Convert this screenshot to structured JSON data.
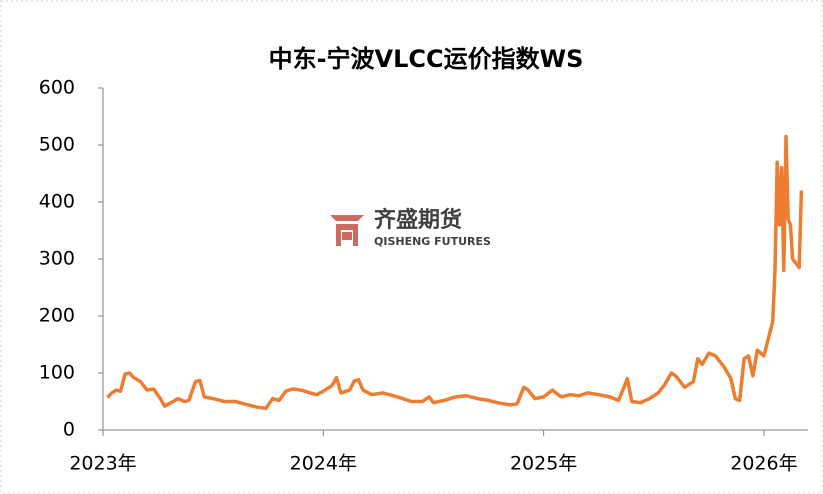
{
  "chart_data": {
    "type": "line",
    "title": "中东-宁波VLCC运价指数WS",
    "watermark": [
      "齐盛期货",
      "QISHENG FUTURES"
    ],
    "xlim": [
      2023,
      2026.2
    ],
    "xticks": [
      {
        "value": 2023,
        "label": "2023年"
      },
      {
        "value": 2024,
        "label": "2024年"
      },
      {
        "value": 2025,
        "label": "2025年"
      },
      {
        "value": 2026,
        "label": "2026年"
      }
    ],
    "ylim": [
      0,
      600
    ],
    "yticks": [
      0,
      100,
      200,
      300,
      400,
      500,
      600
    ],
    "grid": false,
    "series": [
      {
        "name": "WS",
        "color": "#ed7d31",
        "x": [
          2023.02,
          2023.04,
          2023.06,
          2023.08,
          2023.1,
          2023.12,
          2023.14,
          2023.17,
          2023.2,
          2023.23,
          2023.26,
          2023.28,
          2023.31,
          2023.34,
          2023.37,
          2023.39,
          2023.42,
          2023.44,
          2023.46,
          2023.5,
          2023.55,
          2023.6,
          2023.65,
          2023.7,
          2023.74,
          2023.77,
          2023.8,
          2023.83,
          2023.86,
          2023.9,
          2023.94,
          2023.97,
          2024.0,
          2024.04,
          2024.06,
          2024.08,
          2024.12,
          2024.14,
          2024.16,
          2024.18,
          2024.22,
          2024.27,
          2024.32,
          2024.36,
          2024.4,
          2024.45,
          2024.48,
          2024.5,
          2024.55,
          2024.6,
          2024.65,
          2024.7,
          2024.75,
          2024.8,
          2024.85,
          2024.88,
          2024.91,
          2024.93,
          2024.96,
          2025.0,
          2025.04,
          2025.08,
          2025.12,
          2025.16,
          2025.2,
          2025.25,
          2025.3,
          2025.34,
          2025.36,
          2025.38,
          2025.4,
          2025.44,
          2025.48,
          2025.52,
          2025.55,
          2025.58,
          2025.6,
          2025.64,
          2025.68,
          2025.7,
          2025.72,
          2025.75,
          2025.78,
          2025.82,
          2025.85,
          2025.87,
          2025.89,
          2025.91,
          2025.93,
          2025.95,
          2025.97,
          2026.0,
          2026.02,
          2026.04,
          2026.05,
          2026.06,
          2026.07,
          2026.08,
          2026.09,
          2026.1,
          2026.11,
          2026.12,
          2026.13,
          2026.15,
          2026.16,
          2026.17
        ],
        "values": [
          57,
          65,
          70,
          68,
          98,
          100,
          92,
          85,
          70,
          72,
          55,
          42,
          48,
          55,
          50,
          52,
          85,
          87,
          58,
          55,
          50,
          50,
          45,
          40,
          38,
          55,
          52,
          68,
          72,
          70,
          65,
          62,
          68,
          78,
          92,
          65,
          70,
          86,
          88,
          70,
          62,
          65,
          60,
          55,
          50,
          50,
          58,
          48,
          52,
          58,
          60,
          55,
          52,
          47,
          44,
          46,
          75,
          70,
          55,
          58,
          70,
          58,
          62,
          60,
          65,
          62,
          58,
          52,
          70,
          90,
          50,
          48,
          55,
          65,
          80,
          100,
          95,
          75,
          85,
          125,
          115,
          135,
          130,
          110,
          90,
          55,
          52,
          125,
          130,
          95,
          140,
          130,
          160,
          190,
          280,
          470,
          360,
          460,
          280,
          515,
          370,
          360,
          300,
          290,
          285,
          420
        ]
      }
    ]
  }
}
